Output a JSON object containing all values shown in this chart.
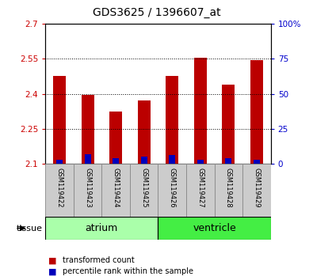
{
  "title": "GDS3625 / 1396607_at",
  "samples": [
    "GSM119422",
    "GSM119423",
    "GSM119424",
    "GSM119425",
    "GSM119426",
    "GSM119427",
    "GSM119428",
    "GSM119429"
  ],
  "transformed_counts": [
    2.475,
    2.395,
    2.325,
    2.37,
    2.475,
    2.555,
    2.44,
    2.545
  ],
  "percentile_ranks": [
    3,
    7,
    4,
    5,
    6,
    3,
    4,
    3
  ],
  "ymin": 2.1,
  "ymax": 2.7,
  "yticks": [
    2.1,
    2.25,
    2.4,
    2.55,
    2.7
  ],
  "ytick_labels": [
    "2.1",
    "2.25",
    "2.4",
    "2.55",
    "2.7"
  ],
  "right_yticks": [
    0,
    25,
    50,
    75,
    100
  ],
  "right_ytick_labels": [
    "0",
    "25",
    "50",
    "75",
    "100%"
  ],
  "bar_color_red": "#bb0000",
  "bar_color_blue": "#0000bb",
  "atrium_color": "#aaffaa",
  "ventricle_color": "#44ee44",
  "sample_box_color": "#cccccc",
  "tissue_label": "tissue",
  "legend_red": "transformed count",
  "legend_blue": "percentile rank within the sample",
  "bar_width": 0.45,
  "blue_bar_width": 0.22,
  "left_axis_color": "#cc0000",
  "right_axis_color": "#0000cc",
  "title_fontsize": 10,
  "tick_fontsize": 7.5,
  "sample_fontsize": 6,
  "tissue_fontsize": 9,
  "legend_fontsize": 7
}
